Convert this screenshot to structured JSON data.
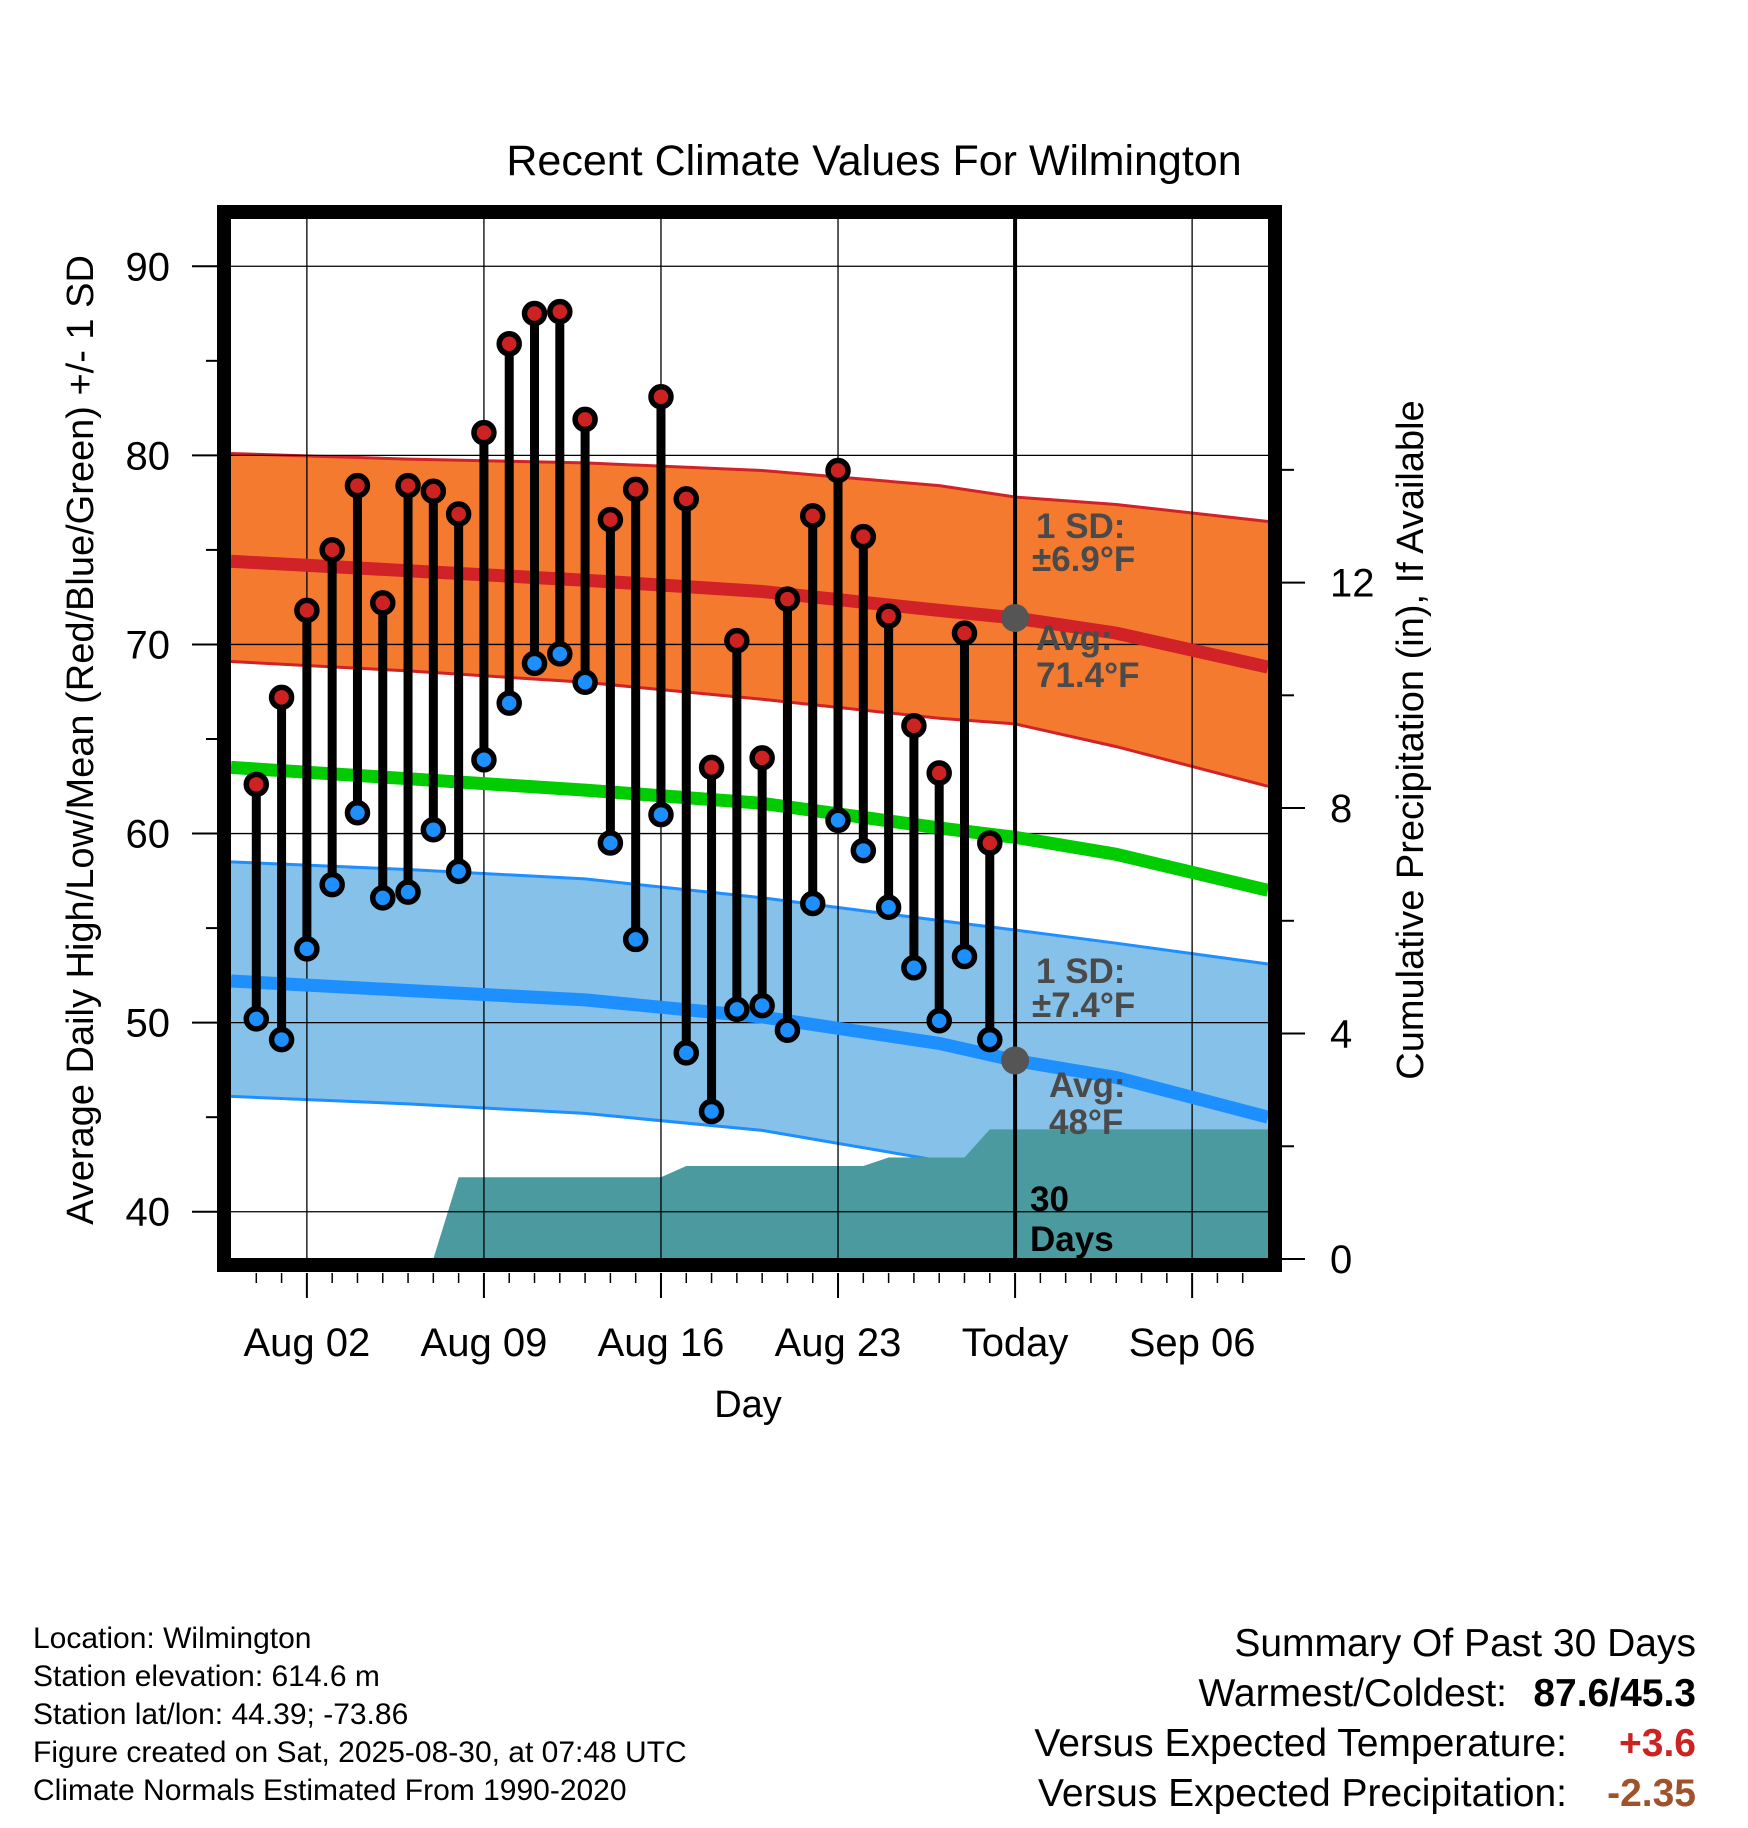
{
  "chart_data": {
    "type": "line",
    "title": "Recent Climate Values For Wilmington",
    "xlabel": "Day",
    "ylabel": "Average Daily High/Low/Mean (Red/Blue/Green) +/- 1 SD",
    "y2label": "Cumulative Precipitation (in), If Available",
    "ylim": [
      37.5,
      92.5
    ],
    "y2lim": [
      0,
      18.45
    ],
    "yticks": [
      40,
      50,
      60,
      70,
      80,
      90
    ],
    "y2ticks": [
      0,
      4,
      8,
      12
    ],
    "x_range": [
      "2025-07-30",
      "2025-09-09"
    ],
    "xticks": [
      {
        "date": "2025-08-02",
        "label": "Aug 02"
      },
      {
        "date": "2025-08-09",
        "label": "Aug 09"
      },
      {
        "date": "2025-08-16",
        "label": "Aug 16"
      },
      {
        "date": "2025-08-23",
        "label": "Aug 23"
      },
      {
        "date": "2025-08-30",
        "label": "Today"
      },
      {
        "date": "2025-09-06",
        "label": "Sep 06"
      }
    ],
    "today": "2025-08-30",
    "grid": true,
    "observed": [
      {
        "date": "2025-07-31",
        "high": 62.6,
        "low": 50.2
      },
      {
        "date": "2025-08-01",
        "high": 67.2,
        "low": 49.1
      },
      {
        "date": "2025-08-02",
        "high": 71.8,
        "low": 53.9
      },
      {
        "date": "2025-08-03",
        "high": 75.0,
        "low": 57.3
      },
      {
        "date": "2025-08-04",
        "high": 78.4,
        "low": 61.1
      },
      {
        "date": "2025-08-05",
        "high": 72.2,
        "low": 56.6
      },
      {
        "date": "2025-08-06",
        "high": 78.4,
        "low": 56.9
      },
      {
        "date": "2025-08-07",
        "high": 78.1,
        "low": 60.2
      },
      {
        "date": "2025-08-08",
        "high": 76.9,
        "low": 58.0
      },
      {
        "date": "2025-08-09",
        "high": 81.2,
        "low": 63.9
      },
      {
        "date": "2025-08-10",
        "high": 85.9,
        "low": 66.9
      },
      {
        "date": "2025-08-11",
        "high": 87.5,
        "low": 69.0
      },
      {
        "date": "2025-08-12",
        "high": 87.6,
        "low": 69.5
      },
      {
        "date": "2025-08-13",
        "high": 81.9,
        "low": 68.0
      },
      {
        "date": "2025-08-14",
        "high": 76.6,
        "low": 59.5
      },
      {
        "date": "2025-08-15",
        "high": 78.2,
        "low": 54.4
      },
      {
        "date": "2025-08-16",
        "high": 83.1,
        "low": 61.0
      },
      {
        "date": "2025-08-17",
        "high": 77.7,
        "low": 48.4
      },
      {
        "date": "2025-08-18",
        "high": 63.5,
        "low": 45.3
      },
      {
        "date": "2025-08-19",
        "high": 70.2,
        "low": 50.7
      },
      {
        "date": "2025-08-20",
        "high": 64.0,
        "low": 50.9
      },
      {
        "date": "2025-08-21",
        "high": 72.4,
        "low": 49.6
      },
      {
        "date": "2025-08-22",
        "high": 76.8,
        "low": 56.3
      },
      {
        "date": "2025-08-23",
        "high": 79.2,
        "low": 60.7
      },
      {
        "date": "2025-08-24",
        "high": 75.7,
        "low": 59.1
      },
      {
        "date": "2025-08-25",
        "high": 71.5,
        "low": 56.1
      },
      {
        "date": "2025-08-26",
        "high": 65.7,
        "low": 52.9
      },
      {
        "date": "2025-08-27",
        "high": 63.2,
        "low": 50.1
      },
      {
        "date": "2025-08-28",
        "high": 70.6,
        "low": 53.5
      },
      {
        "date": "2025-08-29",
        "high": 59.5,
        "low": 49.1
      }
    ],
    "normals": {
      "dates": [
        "2025-07-30",
        "2025-08-06",
        "2025-08-13",
        "2025-08-20",
        "2025-08-27",
        "2025-08-30",
        "2025-09-03",
        "2025-09-09"
      ],
      "high_mean": [
        74.4,
        73.9,
        73.4,
        72.8,
        71.8,
        71.4,
        70.6,
        68.8
      ],
      "high_sd_upper": [
        80.1,
        79.8,
        79.6,
        79.2,
        78.4,
        77.8,
        77.4,
        76.5
      ],
      "high_sd_lower": [
        69.1,
        68.6,
        68.0,
        67.1,
        66.1,
        65.8,
        64.6,
        62.5
      ],
      "mean": [
        63.5,
        62.9,
        62.3,
        61.6,
        60.3,
        59.8,
        58.9,
        57.0
      ],
      "low_mean": [
        52.2,
        51.7,
        51.2,
        50.3,
        48.9,
        48.0,
        47.1,
        45.0
      ],
      "low_sd_upper": [
        58.5,
        58.1,
        57.6,
        56.6,
        55.4,
        54.9,
        54.2,
        53.1
      ],
      "low_sd_lower": [
        46.1,
        45.7,
        45.2,
        44.3,
        42.7,
        41.9,
        41.5,
        41.4
      ]
    },
    "precip_cumulative": {
      "dates": [
        "2025-08-07",
        "2025-08-08",
        "2025-08-16",
        "2025-08-17",
        "2025-08-24",
        "2025-08-25",
        "2025-08-28",
        "2025-08-29",
        "2025-09-09"
      ],
      "values": [
        0.0,
        1.45,
        1.45,
        1.65,
        1.65,
        1.8,
        1.8,
        2.3,
        2.3
      ]
    },
    "today_markers": {
      "high": 71.4,
      "low": 48.0
    },
    "annotations": {
      "high_sd_label": "1 SD:",
      "high_sd_value": "±6.9°F",
      "high_avg_label": "Avg:",
      "high_avg_value": "71.4°F",
      "low_sd_label": "1 SD:",
      "low_sd_value": "±7.4°F",
      "low_avg_label": "Avg:",
      "low_avg_value": "48°F",
      "precip_days_number": "30",
      "precip_days_word": "Days"
    },
    "colors": {
      "high_band": "#f47a30",
      "high_line": "#d02227",
      "low_band": "#85c1e9",
      "low_line": "#1e8fff",
      "mean_line": "#00cc00",
      "precip_fill": "#4a9aa0",
      "high_dot": "#cc2222",
      "low_dot": "#1e8fff",
      "marker_gray": "#555555"
    }
  },
  "footer_left": {
    "location": "Location: Wilmington",
    "elevation": "Station elevation: 614.6 m",
    "latlon": "Station lat/lon: 44.39; -73.86",
    "created": "Figure created on Sat, 2025-08-30, at 07:48 UTC",
    "normals": "Climate Normals Estimated From 1990-2020"
  },
  "summary": {
    "heading": "Summary Of Past 30 Days",
    "warm_cold_label": "Warmest/Coldest:",
    "warm_cold_value": "87.6/45.3",
    "temp_label": "Versus Expected Temperature:",
    "temp_value": "+3.6",
    "temp_color": "#cc2222",
    "precip_label": "Versus Expected Precipitation:",
    "precip_value": "-2.35",
    "precip_color": "#a0522d"
  }
}
